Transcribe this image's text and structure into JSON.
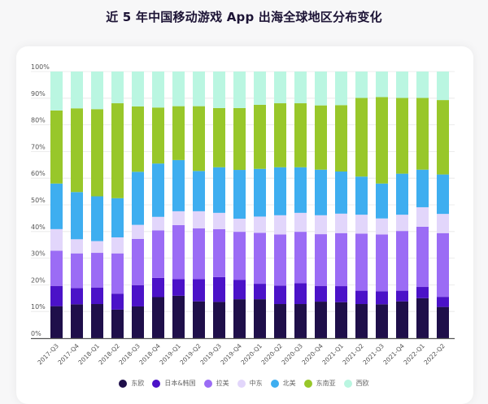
{
  "title": "近 5 年中国移动游戏 App 出海全球地区分布变化",
  "chart_data": {
    "type": "bar",
    "stacked": true,
    "title": "近 5 年中国移动游戏 App 出海全球地区分布变化",
    "xlabel": "",
    "ylabel": "",
    "ylim": [
      0,
      100
    ],
    "yticks": [
      "0%",
      "10%",
      "20%",
      "30%",
      "40%",
      "50%",
      "60%",
      "70%",
      "80%",
      "90%",
      "100%"
    ],
    "grid": true,
    "legend_position": "bottom",
    "categories": [
      "2017-Q3",
      "2017-Q4",
      "2018-Q1",
      "2018-Q2",
      "2018-Q3",
      "2018-Q4",
      "2019-Q1",
      "2019-Q2",
      "2019-Q3",
      "2019-Q4",
      "2020-Q1",
      "2020-Q2",
      "2020-Q3",
      "2020-Q4",
      "2021-Q1",
      "2021-Q2",
      "2021-Q3",
      "2021-Q4",
      "2022-Q1",
      "2022-Q2"
    ],
    "series": [
      {
        "name": "东欧",
        "color": "#1f0f4a",
        "values": [
          12.0,
          12.7,
          12.8,
          10.7,
          11.9,
          15.4,
          15.9,
          13.8,
          13.6,
          14.6,
          14.6,
          12.8,
          12.8,
          13.7,
          13.5,
          12.8,
          12.7,
          13.8,
          15.0,
          11.7
        ]
      },
      {
        "name": "日本&韩国",
        "color": "#4b12c8",
        "values": [
          7.6,
          6.1,
          6.2,
          6.0,
          8.0,
          7.2,
          6.2,
          8.3,
          9.3,
          7.3,
          5.8,
          6.9,
          7.8,
          5.9,
          6.0,
          5.0,
          4.9,
          4.0,
          4.2,
          3.8
        ]
      },
      {
        "name": "拉美",
        "color": "#9b6cf5",
        "values": [
          13.2,
          13.0,
          13.0,
          15.1,
          17.3,
          17.8,
          20.3,
          19.1,
          18.0,
          18.0,
          19.1,
          19.2,
          19.3,
          19.4,
          19.9,
          21.4,
          21.3,
          22.4,
          22.6,
          23.9
        ]
      },
      {
        "name": "中东",
        "color": "#e2d6fb",
        "values": [
          8.1,
          5.3,
          4.4,
          6.0,
          5.3,
          5.1,
          5.2,
          6.4,
          6.1,
          4.9,
          6.1,
          7.2,
          7.1,
          7.1,
          7.3,
          7.1,
          6.0,
          6.1,
          7.3,
          7.2
        ]
      },
      {
        "name": "北美",
        "color": "#3eaef0",
        "values": [
          17.1,
          17.7,
          16.8,
          14.7,
          19.9,
          20.0,
          19.2,
          15.1,
          17.1,
          18.3,
          17.9,
          18.0,
          17.1,
          17.1,
          15.8,
          14.3,
          13.1,
          15.4,
          14.1,
          14.8
        ]
      },
      {
        "name": "东南亚",
        "color": "#98c72a",
        "values": [
          27.4,
          31.4,
          32.7,
          35.6,
          24.5,
          21.0,
          20.2,
          24.3,
          22.2,
          23.2,
          24.0,
          24.0,
          24.0,
          24.1,
          24.9,
          29.5,
          32.4,
          28.4,
          26.9,
          27.9
        ]
      },
      {
        "name": "西欧",
        "color": "#baf6e1",
        "values": [
          14.6,
          13.8,
          14.1,
          11.9,
          13.1,
          13.5,
          13.0,
          13.0,
          13.7,
          13.7,
          12.5,
          11.9,
          11.9,
          12.7,
          12.6,
          9.9,
          9.6,
          9.9,
          9.9,
          10.7
        ]
      }
    ]
  }
}
